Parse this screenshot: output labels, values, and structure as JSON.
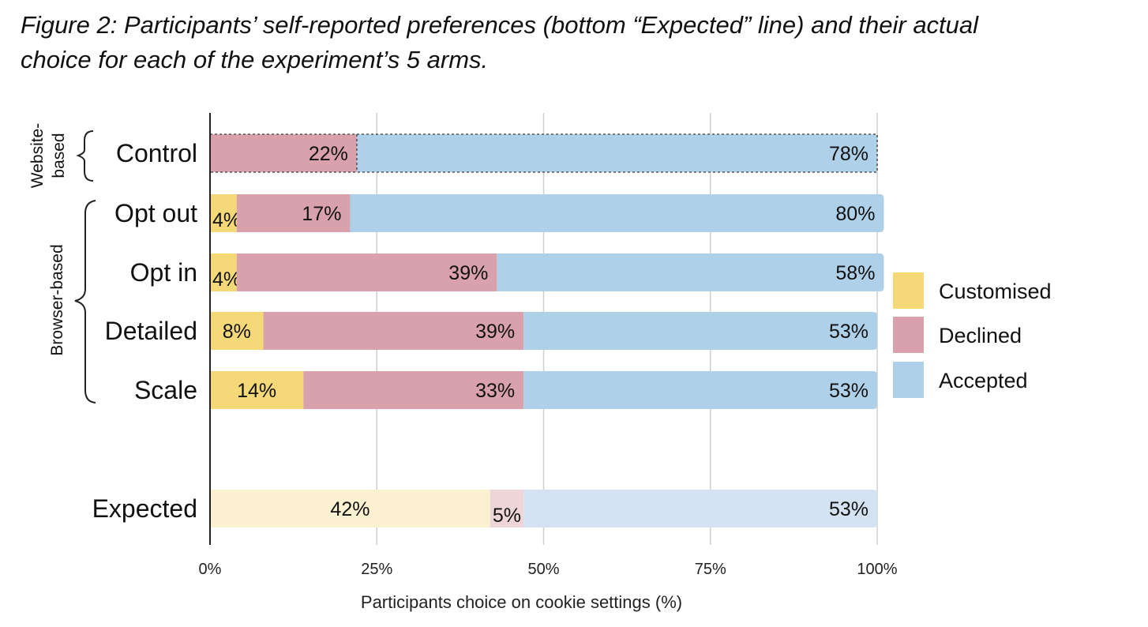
{
  "caption": {
    "line1": "Figure 2: Participants’ self-reported preferences (bottom “Expected” line) and their actual",
    "line2": "choice for each of the experiment’s 5 arms."
  },
  "chart_data": {
    "type": "bar",
    "orientation": "horizontal",
    "stacked": true,
    "categories": [
      "Control",
      "Opt out",
      "Opt in",
      "Detailed",
      "Scale",
      "Expected"
    ],
    "series": [
      {
        "name": "Customised",
        "color": "#f5d878",
        "light_color": "#fbf1d0",
        "values": [
          0,
          4,
          4,
          8,
          14,
          42
        ],
        "labels": [
          "0%",
          "4%",
          "4%",
          "8%",
          "14%",
          "42%"
        ]
      },
      {
        "name": "Declined",
        "color": "#d9a1ab",
        "light_color": "#eed5d8",
        "values": [
          22,
          17,
          39,
          39,
          33,
          5
        ],
        "labels": [
          "22%",
          "17%",
          "39%",
          "39%",
          "33%",
          "5%"
        ]
      },
      {
        "name": "Accepted",
        "color": "#aed0e9",
        "light_color": "#d4e2f1",
        "values": [
          78,
          80,
          58,
          53,
          53,
          53
        ],
        "labels": [
          "78%",
          "80%",
          "58%",
          "53%",
          "53%",
          "53%"
        ]
      }
    ],
    "groups": [
      {
        "label_lines": [
          "Website-",
          "based"
        ],
        "categories": [
          "Control"
        ]
      },
      {
        "label_lines": [
          "Browser-based"
        ],
        "categories": [
          "Opt out",
          "Opt in",
          "Detailed",
          "Scale"
        ]
      }
    ],
    "highlighted_category": "Control",
    "expected_category": "Expected",
    "xlim": [
      0,
      100
    ],
    "xticks": [
      0,
      25,
      50,
      75,
      100
    ],
    "xtick_labels": [
      "0%",
      "25%",
      "50%",
      "75%",
      "100%"
    ],
    "xlabel": "Participants choice on cookie settings (%)",
    "grid": true,
    "legend": {
      "position": "right",
      "items": [
        "Customised",
        "Declined",
        "Accepted"
      ]
    }
  }
}
